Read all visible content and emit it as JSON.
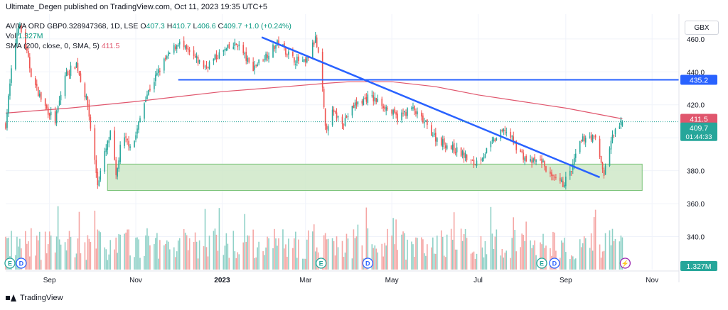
{
  "header": {
    "published": "Ultimate_Degen published on TradingView.com, Oct 11, 2023 19:35 UTC+5",
    "symbol": "AVIVA ORD GBP0.328947368, 1D, LSE",
    "ohlc": {
      "o_label": "O",
      "o": "407.3",
      "h_label": "H",
      "h": "410.7",
      "l_label": "L",
      "l": "406.6",
      "c_label": "C",
      "c": "409.7",
      "change": "+1.0 (+0.24%)"
    },
    "vol_label": "Vol",
    "vol_value": "1.327M",
    "sma_label": "SMA (200, close, 0, SMA, 5)",
    "sma_value": "411.5",
    "currency": "GBX"
  },
  "footer": {
    "brand": "TradingView"
  },
  "colors": {
    "up": "#26a69a",
    "down": "#ef5350",
    "vol_up": "#8fd1c7",
    "vol_down": "#f5a6a4",
    "trend": "#2962ff",
    "sma": "#e0566d",
    "zone": "#cfe8c8",
    "zone_border": "#7cc47a"
  },
  "chart_data": {
    "type": "candlestick",
    "ylim": [
      320,
      475
    ],
    "y_ticks": [
      340,
      360,
      380,
      400,
      420,
      440,
      460
    ],
    "x_ticks": [
      "Sep",
      "Nov",
      "2023",
      "Mar",
      "May",
      "Jul",
      "Sep",
      "Nov"
    ],
    "x_range": [
      "2022-08-01",
      "2023-11-20"
    ],
    "x_tick_dates": [
      "2022-09-01",
      "2022-11-01",
      "2023-01-01",
      "2023-03-01",
      "2023-05-01",
      "2023-07-01",
      "2023-09-01",
      "2023-11-01"
    ],
    "price_path": [
      [
        "2022-08-01",
        408
      ],
      [
        "2022-08-05",
        440
      ],
      [
        "2022-08-10",
        470
      ],
      [
        "2022-08-15",
        455
      ],
      [
        "2022-08-20",
        435
      ],
      [
        "2022-08-28",
        420
      ],
      [
        "2022-09-05",
        410
      ],
      [
        "2022-09-12",
        438
      ],
      [
        "2022-09-20",
        445
      ],
      [
        "2022-09-28",
        420
      ],
      [
        "2022-10-05",
        372
      ],
      [
        "2022-10-10",
        390
      ],
      [
        "2022-10-15",
        405
      ],
      [
        "2022-10-18",
        375
      ],
      [
        "2022-10-22",
        400
      ],
      [
        "2022-10-30",
        395
      ],
      [
        "2022-11-08",
        425
      ],
      [
        "2022-11-20",
        445
      ],
      [
        "2022-12-01",
        458
      ],
      [
        "2022-12-10",
        450
      ],
      [
        "2022-12-20",
        443
      ],
      [
        "2023-01-01",
        452
      ],
      [
        "2023-01-12",
        457
      ],
      [
        "2023-01-22",
        442
      ],
      [
        "2023-02-01",
        450
      ],
      [
        "2023-02-10",
        458
      ],
      [
        "2023-02-20",
        448
      ],
      [
        "2023-03-01",
        445
      ],
      [
        "2023-03-08",
        460
      ],
      [
        "2023-03-12",
        440
      ],
      [
        "2023-03-15",
        405
      ],
      [
        "2023-03-20",
        415
      ],
      [
        "2023-03-28",
        410
      ],
      [
        "2023-04-05",
        420
      ],
      [
        "2023-04-15",
        425
      ],
      [
        "2023-04-25",
        420
      ],
      [
        "2023-05-05",
        412
      ],
      [
        "2023-05-15",
        418
      ],
      [
        "2023-05-25",
        408
      ],
      [
        "2023-06-01",
        400
      ],
      [
        "2023-06-10",
        395
      ],
      [
        "2023-06-20",
        390
      ],
      [
        "2023-06-28",
        384
      ],
      [
        "2023-07-05",
        390
      ],
      [
        "2023-07-12",
        398
      ],
      [
        "2023-07-20",
        405
      ],
      [
        "2023-07-28",
        395
      ],
      [
        "2023-08-05",
        385
      ],
      [
        "2023-08-15",
        386
      ],
      [
        "2023-08-22",
        375
      ],
      [
        "2023-08-30",
        372
      ],
      [
        "2023-09-05",
        380
      ],
      [
        "2023-09-10",
        395
      ],
      [
        "2023-09-16",
        402
      ],
      [
        "2023-09-22",
        399
      ],
      [
        "2023-09-28",
        378
      ],
      [
        "2023-10-03",
        398
      ],
      [
        "2023-10-07",
        406
      ],
      [
        "2023-10-11",
        409.7
      ]
    ],
    "sma_path": [
      [
        "2022-08-01",
        415
      ],
      [
        "2022-09-15",
        418
      ],
      [
        "2022-11-01",
        422
      ],
      [
        "2023-01-01",
        428
      ],
      [
        "2023-02-15",
        431
      ],
      [
        "2023-03-15",
        433
      ],
      [
        "2023-04-01",
        434
      ],
      [
        "2023-05-01",
        434
      ],
      [
        "2023-06-01",
        431
      ],
      [
        "2023-07-01",
        426
      ],
      [
        "2023-08-01",
        422
      ],
      [
        "2023-09-01",
        418
      ],
      [
        "2023-10-11",
        411.5
      ]
    ],
    "resistance": {
      "value": 435.2,
      "label": "435.2",
      "from": "2022-12-01",
      "to": "2023-11-20"
    },
    "trendline": [
      [
        "2023-01-29",
        461
      ],
      [
        "2023-09-25",
        376
      ]
    ],
    "support_zone": {
      "from": "2022-10-12",
      "to": "2023-10-25",
      "low": 368,
      "high": 384
    },
    "last_price": {
      "value": 409.7,
      "label": "409.7",
      "countdown": "01:44:33"
    },
    "sma_last": {
      "value": 411.5,
      "label": "411.5"
    },
    "volume_last": {
      "label": "1.327M"
    },
    "events": [
      {
        "date": "2022-08-04",
        "kind": "E"
      },
      {
        "date": "2022-08-12",
        "kind": "D"
      },
      {
        "date": "2023-03-12",
        "kind": "E"
      },
      {
        "date": "2023-04-14",
        "kind": "D"
      },
      {
        "date": "2023-08-15",
        "kind": "E"
      },
      {
        "date": "2023-08-24",
        "kind": "D"
      },
      {
        "date": "2023-10-13",
        "kind": "split"
      }
    ]
  }
}
